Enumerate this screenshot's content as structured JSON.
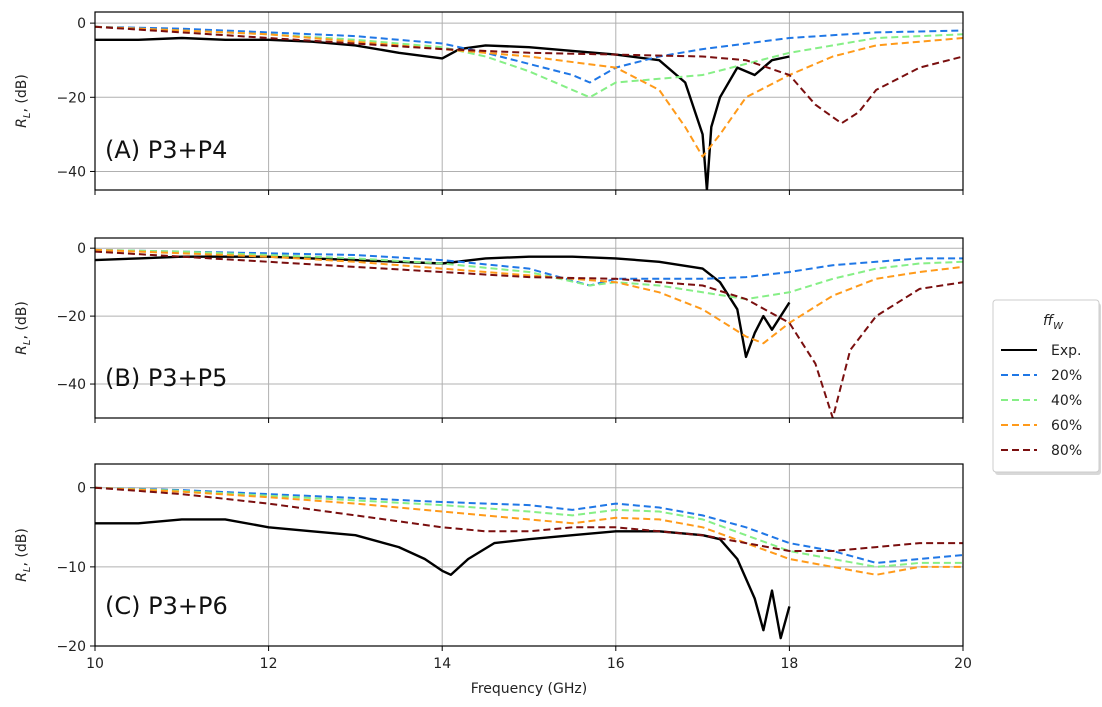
{
  "chart_data": [
    {
      "type": "line",
      "panel_label": "(A) P3+P4",
      "xlabel": "",
      "ylabel": "R_L, (dB)",
      "xlim": [
        10,
        20
      ],
      "ylim": [
        -45,
        3
      ],
      "xticks": [
        10,
        12,
        14,
        16,
        18,
        20
      ],
      "yticks": [
        0,
        -20,
        -40
      ],
      "grid": true,
      "series": [
        {
          "name": "Exp.",
          "x": [
            10,
            10.5,
            11,
            11.5,
            12,
            12.5,
            13,
            13.5,
            14,
            14.2,
            14.5,
            15,
            15.5,
            16,
            16.5,
            16.8,
            17,
            17.05,
            17.1,
            17.2,
            17.4,
            17.6,
            17.8,
            18
          ],
          "y": [
            -4.5,
            -4.5,
            -4,
            -4.5,
            -4.5,
            -5,
            -6,
            -8,
            -9.5,
            -7,
            -6,
            -6.5,
            -7.5,
            -8.5,
            -10,
            -16,
            -30,
            -45,
            -28,
            -20,
            -12,
            -14,
            -10,
            -9
          ]
        },
        {
          "name": "20%",
          "x": [
            10,
            11,
            12,
            13,
            14,
            14.5,
            15,
            15.5,
            15.7,
            16,
            16.5,
            17,
            18,
            19,
            20
          ],
          "y": [
            -1,
            -1.5,
            -2.5,
            -3.5,
            -5.5,
            -8,
            -11,
            -14,
            -16,
            -12,
            -9,
            -7,
            -4,
            -2.5,
            -2
          ]
        },
        {
          "name": "40%",
          "x": [
            10,
            11,
            12,
            13,
            14,
            14.5,
            15,
            15.5,
            15.7,
            16,
            16.5,
            17,
            17.5,
            18,
            19,
            20
          ],
          "y": [
            -1,
            -2,
            -3,
            -4.5,
            -6.5,
            -9,
            -13,
            -18,
            -20,
            -16,
            -15,
            -14,
            -11,
            -8,
            -4,
            -3
          ]
        },
        {
          "name": "60%",
          "x": [
            10,
            11,
            12,
            13,
            14,
            15,
            16,
            16.5,
            16.8,
            17,
            17.2,
            17.5,
            18,
            18.5,
            19,
            19.5,
            20
          ],
          "y": [
            -1,
            -2,
            -3,
            -5,
            -7,
            -9,
            -12,
            -18,
            -28,
            -36,
            -30,
            -20,
            -14,
            -9,
            -6,
            -5,
            -4
          ]
        },
        {
          "name": "80%",
          "x": [
            10,
            11,
            12,
            13,
            14,
            15,
            16,
            17,
            17.5,
            18,
            18.3,
            18.6,
            18.8,
            19,
            19.5,
            20
          ],
          "y": [
            -1,
            -2.5,
            -4,
            -5.5,
            -7,
            -8,
            -8.5,
            -9,
            -10,
            -14,
            -22,
            -27,
            -24,
            -18,
            -12,
            -9
          ]
        }
      ]
    },
    {
      "type": "line",
      "panel_label": "(B) P3+P5",
      "xlabel": "",
      "ylabel": "R_L, (dB)",
      "xlim": [
        10,
        20
      ],
      "ylim": [
        -50,
        3
      ],
      "xticks": [
        10,
        12,
        14,
        16,
        18,
        20
      ],
      "yticks": [
        0,
        -20,
        -40
      ],
      "grid": true,
      "series": [
        {
          "name": "Exp.",
          "x": [
            10,
            10.5,
            11,
            11.5,
            12,
            12.5,
            13,
            13.5,
            14,
            14.5,
            15,
            15.5,
            16,
            16.5,
            17,
            17.2,
            17.4,
            17.5,
            17.6,
            17.7,
            17.8,
            18
          ],
          "y": [
            -3.5,
            -3,
            -2.5,
            -2.5,
            -2.5,
            -3,
            -3.5,
            -4,
            -4.5,
            -3,
            -2.5,
            -2.5,
            -3,
            -4,
            -6,
            -10,
            -18,
            -32,
            -25,
            -20,
            -24,
            -16
          ]
        },
        {
          "name": "20%",
          "x": [
            10,
            11,
            12,
            13,
            14,
            15,
            15.7,
            16,
            16.5,
            17,
            17.5,
            18,
            18.5,
            19,
            19.5,
            20
          ],
          "y": [
            -0.5,
            -1,
            -1.5,
            -2,
            -3.5,
            -6,
            -11,
            -9,
            -9,
            -9,
            -8.5,
            -7,
            -5,
            -4,
            -3,
            -3
          ]
        },
        {
          "name": "40%",
          "x": [
            10,
            11,
            12,
            13,
            14,
            15,
            15.7,
            16,
            16.5,
            17,
            17.5,
            18,
            18.5,
            19,
            19.5,
            20
          ],
          "y": [
            -0.5,
            -1,
            -2,
            -3,
            -4.5,
            -7,
            -11,
            -10,
            -11,
            -13,
            -15,
            -13,
            -9,
            -6,
            -4.5,
            -4
          ]
        },
        {
          "name": "60%",
          "x": [
            10,
            11,
            12,
            13,
            14,
            15,
            16,
            16.5,
            17,
            17.5,
            17.7,
            18,
            18.5,
            19,
            19.5,
            20
          ],
          "y": [
            -0.5,
            -1.5,
            -2.5,
            -4,
            -6,
            -8,
            -10,
            -13,
            -18,
            -26,
            -28,
            -22,
            -14,
            -9,
            -7,
            -5.5
          ]
        },
        {
          "name": "80%",
          "x": [
            10,
            11,
            12,
            13,
            14,
            15,
            16,
            17,
            17.5,
            18,
            18.3,
            18.5,
            18.7,
            19,
            19.5,
            20
          ],
          "y": [
            -1,
            -2.5,
            -4,
            -5.5,
            -7,
            -8.5,
            -9,
            -11,
            -15,
            -22,
            -34,
            -50,
            -30,
            -20,
            -12,
            -10
          ]
        }
      ]
    },
    {
      "type": "line",
      "panel_label": "(C) P3+P6",
      "xlabel": "Frequency (GHz)",
      "ylabel": "R_L, (dB)",
      "xlim": [
        10,
        20
      ],
      "ylim": [
        -20,
        3
      ],
      "xticks": [
        10,
        12,
        14,
        16,
        18,
        20
      ],
      "yticks": [
        0,
        -10,
        -20
      ],
      "grid": true,
      "series": [
        {
          "name": "Exp.",
          "x": [
            10,
            10.5,
            11,
            11.5,
            12,
            12.5,
            13,
            13.5,
            13.8,
            14,
            14.1,
            14.3,
            14.6,
            15,
            15.5,
            16,
            16.5,
            17,
            17.2,
            17.4,
            17.6,
            17.7,
            17.8,
            17.9,
            18
          ],
          "y": [
            -4.5,
            -4.5,
            -4,
            -4,
            -5,
            -5.5,
            -6,
            -7.5,
            -9,
            -10.5,
            -11,
            -9,
            -7,
            -6.5,
            -6,
            -5.5,
            -5.5,
            -6,
            -6.5,
            -9,
            -14,
            -18,
            -13,
            -19,
            -15
          ]
        },
        {
          "name": "20%",
          "x": [
            10,
            11,
            12,
            13,
            14,
            15,
            15.5,
            16,
            16.5,
            17,
            17.5,
            18,
            18.5,
            19,
            19.5,
            20
          ],
          "y": [
            0,
            -0.3,
            -0.8,
            -1.3,
            -1.8,
            -2.2,
            -2.8,
            -2,
            -2.5,
            -3.5,
            -5,
            -7,
            -8,
            -9.5,
            -9,
            -8.5
          ]
        },
        {
          "name": "40%",
          "x": [
            10,
            11,
            12,
            13,
            14,
            15,
            15.5,
            16,
            16.5,
            17,
            17.5,
            18,
            18.5,
            19,
            19.5,
            20
          ],
          "y": [
            0,
            -0.4,
            -1,
            -1.6,
            -2.2,
            -3,
            -3.5,
            -2.8,
            -3,
            -4,
            -6,
            -8,
            -9,
            -10,
            -9.5,
            -9.5
          ]
        },
        {
          "name": "60%",
          "x": [
            10,
            11,
            12,
            13,
            14,
            15,
            15.5,
            16,
            16.5,
            17,
            17.5,
            18,
            18.5,
            19,
            19.5,
            20
          ],
          "y": [
            0,
            -0.5,
            -1.2,
            -2,
            -3,
            -4,
            -4.5,
            -3.8,
            -4,
            -5,
            -7,
            -9,
            -10,
            -11,
            -10,
            -10
          ]
        },
        {
          "name": "80%",
          "x": [
            10,
            11,
            12,
            13,
            14,
            14.5,
            15,
            15.5,
            16,
            16.5,
            17,
            17.5,
            18,
            18.5,
            19,
            19.5,
            20
          ],
          "y": [
            0,
            -0.8,
            -2,
            -3.5,
            -5,
            -5.5,
            -5.5,
            -5,
            -5,
            -5.5,
            -6,
            -7,
            -8,
            -8,
            -7.5,
            -7,
            -7
          ]
        }
      ]
    }
  ],
  "legend": {
    "title": "ff_W",
    "placement": "center-right",
    "entries": [
      {
        "label": "Exp.",
        "color": "#000000",
        "style": "solid"
      },
      {
        "label": "20%",
        "color": "#1f77e6",
        "style": "dashed"
      },
      {
        "label": "40%",
        "color": "#86ef86",
        "style": "dashed"
      },
      {
        "label": "60%",
        "color": "#ff9a1a",
        "style": "dashed"
      },
      {
        "label": "80%",
        "color": "#7a0f0f",
        "style": "dashed"
      }
    ]
  }
}
